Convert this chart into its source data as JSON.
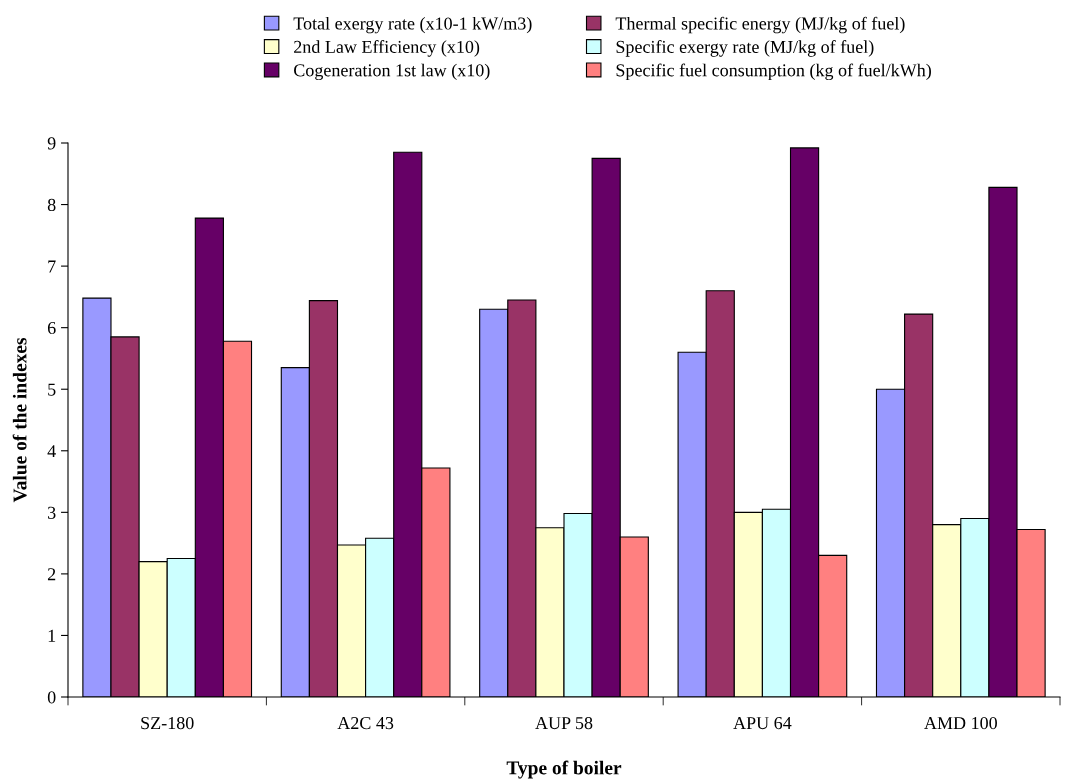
{
  "chart_data": {
    "type": "bar",
    "xlabel": "Type of boiler",
    "ylabel": "Value of the indexes",
    "categories": [
      "SZ-180",
      "A2C 43",
      "AUP 58",
      "APU 64",
      "AMD 100"
    ],
    "series": [
      {
        "name": "Total exergy rate (x10-1 kW/m3)",
        "color": "#9999ff",
        "values": [
          6.48,
          5.35,
          6.3,
          5.6,
          5.0
        ]
      },
      {
        "name": "Thermal specific energy (MJ/kg of fuel)",
        "color": "#993366",
        "values": [
          5.85,
          6.44,
          6.45,
          6.6,
          6.22
        ]
      },
      {
        "name": "2nd Law Efficiency (x10)",
        "color": "#ffffcc",
        "values": [
          2.2,
          2.47,
          2.75,
          3.0,
          2.8
        ]
      },
      {
        "name": "Specific exergy rate (MJ/kg of fuel)",
        "color": "#ccffff",
        "values": [
          2.25,
          2.58,
          2.98,
          3.05,
          2.9
        ]
      },
      {
        "name": "Cogeneration 1st law (x10)",
        "color": "#660066",
        "values": [
          7.78,
          8.85,
          8.75,
          8.92,
          8.28
        ]
      },
      {
        "name": "Specific fuel consumption (kg of fuel/kWh)",
        "color": "#ff8080",
        "values": [
          5.78,
          3.72,
          2.6,
          2.3,
          2.72
        ]
      }
    ],
    "ylim": [
      0,
      9
    ],
    "yticks": [
      0,
      1,
      2,
      3,
      4,
      5,
      6,
      7,
      8,
      9
    ],
    "grid": false,
    "legend": "top"
  }
}
